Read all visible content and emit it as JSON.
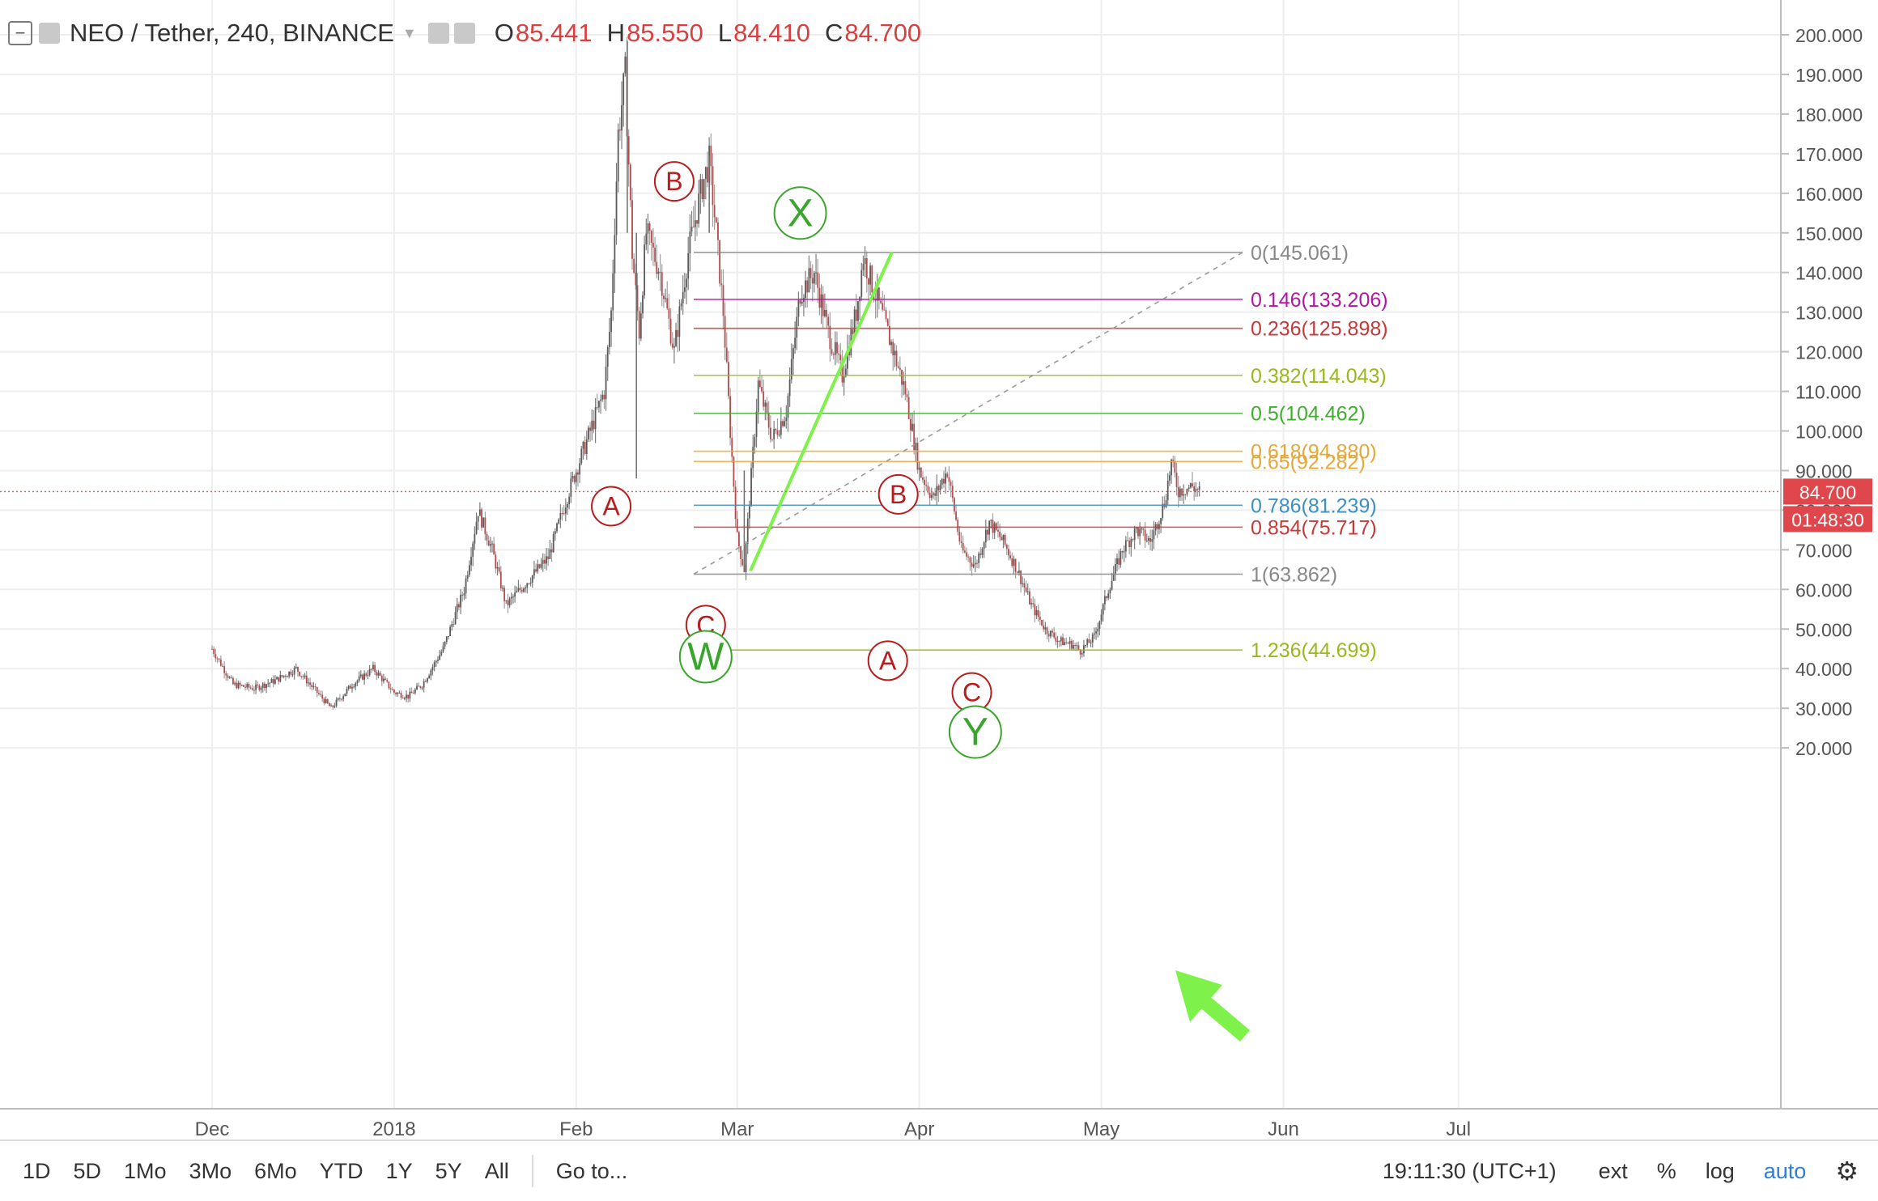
{
  "header": {
    "symbol": "NEO / Tether, 240, BINANCE",
    "open_label": "O",
    "open_value": "85.441",
    "high_label": "H",
    "high_value": "85.550",
    "low_label": "L",
    "low_value": "84.410",
    "close_label": "C",
    "close_value": "84.700",
    "collapse_icon": "minus-icon",
    "settings_icon": "gear-icon"
  },
  "chart_data": {
    "type": "candlestick",
    "title": "NEO / Tether, 240, BINANCE",
    "y_ticks": [
      "200.000",
      "190.000",
      "180.000",
      "170.000",
      "160.000",
      "150.000",
      "140.000",
      "130.000",
      "120.000",
      "110.000",
      "100.000",
      "90.000",
      "80.000",
      "70.000",
      "60.000",
      "50.000",
      "40.000",
      "30.000",
      "20.000"
    ],
    "ylim": [
      20,
      203
    ],
    "x_ticks": [
      "Dec",
      "2018",
      "Feb",
      "Mar",
      "Apr",
      "May",
      "Jun",
      "Jul"
    ],
    "last_price": "84.700",
    "countdown": "01:48:30",
    "price_path": [
      [
        0,
        45
      ],
      [
        3,
        36
      ],
      [
        6,
        35
      ],
      [
        9,
        37
      ],
      [
        12,
        40
      ],
      [
        15,
        34
      ],
      [
        17,
        30
      ],
      [
        20,
        36
      ],
      [
        23,
        40
      ],
      [
        26,
        34
      ],
      [
        28,
        33
      ],
      [
        30,
        36
      ],
      [
        33,
        45
      ],
      [
        36,
        60
      ],
      [
        38,
        80
      ],
      [
        40,
        70
      ],
      [
        42,
        56
      ],
      [
        45,
        62
      ],
      [
        48,
        68
      ],
      [
        51,
        85
      ],
      [
        54,
        100
      ],
      [
        56,
        110
      ],
      [
        57,
        130
      ],
      [
        58,
        175
      ],
      [
        59,
        190
      ],
      [
        60,
        145
      ],
      [
        61,
        125
      ],
      [
        62,
        150
      ],
      [
        64,
        140
      ],
      [
        66,
        120
      ],
      [
        68,
        145
      ],
      [
        70,
        162
      ],
      [
        71,
        168
      ],
      [
        72,
        150
      ],
      [
        73,
        130
      ],
      [
        74,
        100
      ],
      [
        75,
        73
      ],
      [
        76,
        65
      ],
      [
        78,
        112
      ],
      [
        80,
        98
      ],
      [
        82,
        105
      ],
      [
        84,
        135
      ],
      [
        86,
        140
      ],
      [
        88,
        125
      ],
      [
        90,
        114
      ],
      [
        92,
        130
      ],
      [
        93,
        144
      ],
      [
        95,
        133
      ],
      [
        97,
        122
      ],
      [
        99,
        110
      ],
      [
        101,
        90
      ],
      [
        103,
        83
      ],
      [
        105,
        90
      ],
      [
        107,
        70
      ],
      [
        109,
        66
      ],
      [
        111,
        77
      ],
      [
        113,
        72
      ],
      [
        115,
        65
      ],
      [
        117,
        56
      ],
      [
        119,
        50
      ],
      [
        121,
        47
      ],
      [
        123,
        46
      ],
      [
        124,
        44.5
      ],
      [
        126,
        48
      ],
      [
        128,
        60
      ],
      [
        130,
        70
      ],
      [
        132,
        75
      ],
      [
        134,
        72
      ],
      [
        136,
        82
      ],
      [
        137,
        92
      ],
      [
        138,
        85
      ],
      [
        140,
        86
      ],
      [
        141,
        84.7
      ]
    ],
    "fibonacci": {
      "levels": [
        {
          "label": "0(145.061)",
          "value": 145.061,
          "color": "#888888"
        },
        {
          "label": "0.146(133.206)",
          "value": 133.206,
          "color": "#b0199f"
        },
        {
          "label": "0.236(125.898)",
          "value": 125.898,
          "color": "#c33a3a"
        },
        {
          "label": "0.382(114.043)",
          "value": 114.043,
          "color": "#98b91b"
        },
        {
          "label": "0.5(104.462)",
          "value": 104.462,
          "color": "#3fae2f"
        },
        {
          "label": "0.618(94.880)",
          "value": 94.88,
          "color": "#e4a83a"
        },
        {
          "label": "0.65(92.282)",
          "value": 92.282,
          "color": "#e4a83a"
        },
        {
          "label": "0.786(81.239)",
          "value": 81.239,
          "color": "#3d8fbf"
        },
        {
          "label": "0.854(75.717)",
          "value": 75.717,
          "color": "#c33a3a"
        },
        {
          "label": "1(63.862)",
          "value": 63.862,
          "color": "#888888"
        },
        {
          "label": "1.236(44.699)",
          "value": 44.699,
          "color": "#98b91b"
        }
      ]
    },
    "wave_labels": [
      {
        "text": "A",
        "color": "#b81c1c",
        "x": 57,
        "y": 81
      },
      {
        "text": "B",
        "color": "#b81c1c",
        "x": 66,
        "y": 163
      },
      {
        "text": "C",
        "color": "#b81c1c",
        "x": 70.5,
        "y": 51
      },
      {
        "text": "W",
        "color": "#3aa52d",
        "x": 70.5,
        "y": 43
      },
      {
        "text": "X",
        "color": "#3aa52d",
        "x": 84,
        "y": 155
      },
      {
        "text": "B",
        "color": "#b81c1c",
        "x": 98,
        "y": 84
      },
      {
        "text": "A",
        "color": "#b81c1c",
        "x": 96.5,
        "y": 42
      },
      {
        "text": "C",
        "color": "#b81c1c",
        "x": 108.5,
        "y": 34
      },
      {
        "text": "Y",
        "color": "#3aa52d",
        "x": 109,
        "y": 24
      }
    ]
  },
  "toolbar": {
    "timeframes": [
      "1D",
      "5D",
      "1Mo",
      "3Mo",
      "6Mo",
      "YTD",
      "1Y",
      "5Y",
      "All"
    ],
    "goto": "Go to...",
    "clock": "19:11:30 (UTC+1)",
    "ext": "ext",
    "percent": "%",
    "log": "log",
    "auto": "auto",
    "settings_icon": "gear-icon"
  },
  "colors": {
    "up": "#53b987",
    "down": "#eb4d5c",
    "candle": "#8a8a8a",
    "price_line": "#e05a5a",
    "green_arrow": "#7ef24a",
    "accent": "#2d7fd6"
  }
}
